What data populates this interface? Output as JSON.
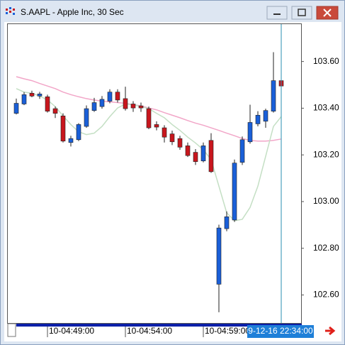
{
  "chart_data": {
    "type": "candlestick",
    "title": "S.AAPL - Apple Inc, 30 Sec",
    "categories": [
      null,
      null,
      null,
      null,
      "10-04:49:00",
      null,
      null,
      null,
      null,
      null,
      null,
      null,
      null,
      null,
      "10-04:54:00",
      null,
      null,
      null,
      null,
      null,
      null,
      null,
      null,
      null,
      "10-04:59:00",
      null,
      null,
      null,
      null,
      null,
      null,
      null,
      null,
      null,
      null
    ],
    "open": [
      103.378,
      103.418,
      103.464,
      103.452,
      103.449,
      103.398,
      103.367,
      103.253,
      103.265,
      103.322,
      103.39,
      103.407,
      103.43,
      103.469,
      103.441,
      103.418,
      103.41,
      103.398,
      103.33,
      103.316,
      103.29,
      103.27,
      103.239,
      103.211,
      103.174,
      103.262,
      102.646,
      102.884,
      102.921,
      103.168,
      103.256,
      103.333,
      103.344,
      103.387,
      103.518
    ],
    "high": [
      103.441,
      103.469,
      103.475,
      103.47,
      103.458,
      103.407,
      103.378,
      103.282,
      103.336,
      103.412,
      103.444,
      103.452,
      103.481,
      103.481,
      103.492,
      103.43,
      103.424,
      103.407,
      103.344,
      103.327,
      103.304,
      103.282,
      103.253,
      103.225,
      103.253,
      103.293,
      102.901,
      102.958,
      103.18,
      103.279,
      103.415,
      103.387,
      103.398,
      103.64,
      103.555
    ],
    "low": [
      103.373,
      103.413,
      103.447,
      103.44,
      103.381,
      103.358,
      103.253,
      103.236,
      103.259,
      103.316,
      103.384,
      103.398,
      103.421,
      103.424,
      103.39,
      103.384,
      103.384,
      103.31,
      103.305,
      103.253,
      103.242,
      103.222,
      103.191,
      103.157,
      103.168,
      103.123,
      102.526,
      102.873,
      102.913,
      103.157,
      103.248,
      103.322,
      103.316,
      103.381,
      103.469
    ],
    "close": [
      103.421,
      103.458,
      103.452,
      103.461,
      103.387,
      103.378,
      103.259,
      103.27,
      103.33,
      103.398,
      103.424,
      103.438,
      103.469,
      103.435,
      103.398,
      103.401,
      103.401,
      103.316,
      103.319,
      103.276,
      103.256,
      103.233,
      103.197,
      103.171,
      103.239,
      103.128,
      102.887,
      102.935,
      103.165,
      103.265,
      103.339,
      103.37,
      103.39,
      103.518,
      103.495
    ],
    "up_color": "#1a5fd8",
    "down_color": "#c8161d",
    "series": [
      {
        "color": "#f2a6c8",
        "values": [
          103.535,
          103.526,
          103.518,
          103.506,
          103.495,
          103.484,
          103.469,
          103.458,
          103.449,
          103.441,
          103.435,
          103.43,
          103.427,
          103.424,
          103.421,
          103.415,
          103.41,
          103.401,
          103.393,
          103.381,
          103.37,
          103.359,
          103.347,
          103.336,
          103.327,
          103.316,
          103.305,
          103.293,
          103.282,
          103.27,
          103.262,
          103.259,
          103.259,
          103.262,
          103.268
        ]
      },
      {
        "color": "#c4dfc4",
        "values": [
          103.484,
          103.469,
          103.464,
          103.452,
          103.435,
          103.407,
          103.367,
          103.33,
          103.299,
          103.287,
          103.293,
          103.322,
          103.364,
          103.401,
          103.418,
          103.415,
          103.407,
          103.398,
          103.378,
          103.359,
          103.33,
          103.305,
          103.276,
          103.251,
          103.222,
          103.18,
          103.066,
          102.952,
          102.918,
          102.924,
          102.975,
          103.066,
          103.194,
          103.322,
          103.364
        ]
      }
    ],
    "ylim": [
      102.48,
      103.76
    ],
    "yticks": [
      {
        "value": 102.6,
        "label": "102.60"
      },
      {
        "value": 102.8,
        "label": "102.80"
      },
      {
        "value": 103.0,
        "label": "103.00"
      },
      {
        "value": 103.2,
        "label": "103.20"
      },
      {
        "value": 103.4,
        "label": "103.40"
      },
      {
        "value": 103.6,
        "label": "103.60"
      }
    ],
    "grid": false,
    "cursor_index": 34,
    "cursor_label": "9-12-16 22:34:00"
  }
}
